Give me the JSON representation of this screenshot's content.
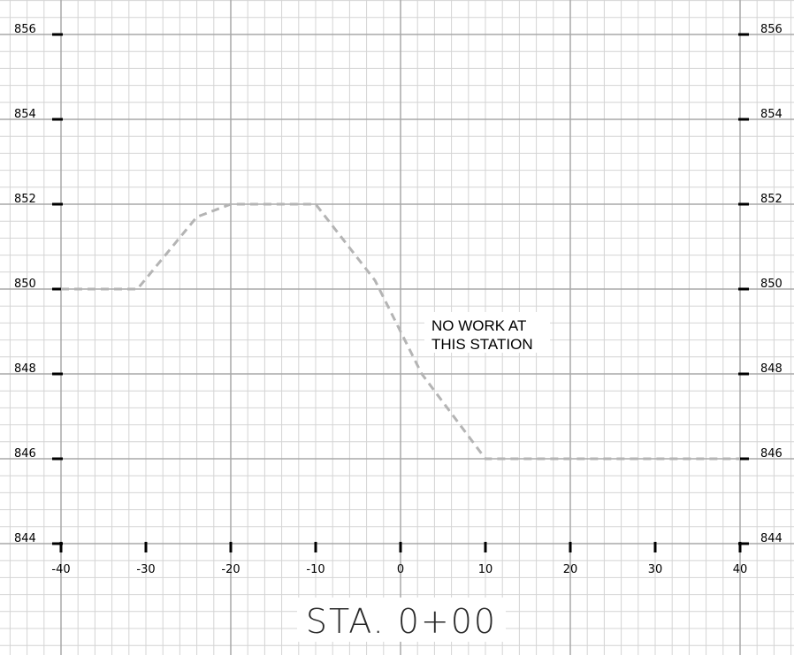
{
  "chart_data": {
    "type": "line",
    "title": "STA. 0+00",
    "annotation": "NO WORK AT THIS STATION",
    "annotation_lines": [
      "NO WORK AT",
      "THIS STATION"
    ],
    "xlim": [
      -40,
      40
    ],
    "ylim": [
      844,
      856
    ],
    "x_ticks": [
      -40,
      -30,
      -20,
      -10,
      0,
      10,
      20,
      30,
      40
    ],
    "x_tick_labels": [
      "-40",
      "-30",
      "-20",
      "-10",
      "0",
      "10",
      "20",
      "30",
      "40"
    ],
    "y_ticks": [
      844,
      846,
      848,
      850,
      852,
      854,
      856
    ],
    "y_tick_labels": [
      "844",
      "846",
      "848",
      "850",
      "852",
      "854",
      "856"
    ],
    "grid": true,
    "series": [
      {
        "style": "dashed",
        "color": "#b4b4b4",
        "x": [
          -40,
          -31,
          -24,
          -20,
          -10,
          -3,
          0,
          2.5,
          10,
          40
        ],
        "y": [
          850,
          850,
          851.7,
          852,
          852,
          850.2,
          849,
          848,
          846,
          846
        ]
      }
    ]
  },
  "colors": {
    "background": "#ffffff",
    "minor_grid": "#d4d4d4",
    "major_grid": "#a8a8a8",
    "tick": "#000000",
    "profile": "#b4b4b4"
  }
}
